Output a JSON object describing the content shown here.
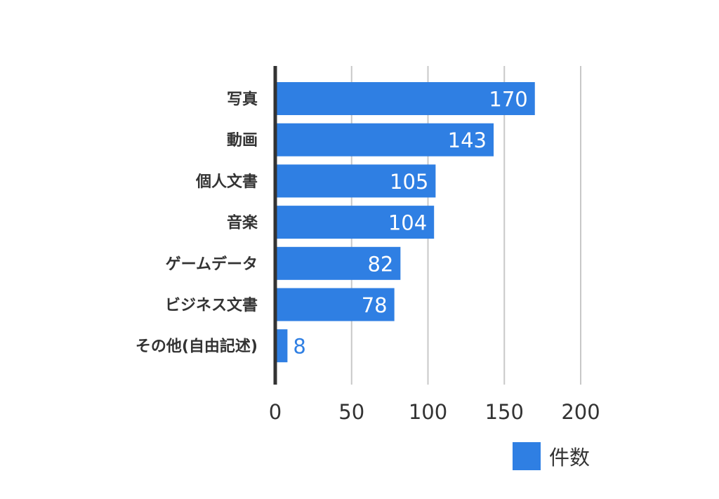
{
  "chart_data": {
    "type": "bar",
    "orientation": "horizontal",
    "categories": [
      "写真",
      "動画",
      "個人文書",
      "音楽",
      "ゲームデータ",
      "ビジネス文書",
      "その他(自由記述)"
    ],
    "series": [
      {
        "name": "件数",
        "values": [
          170,
          143,
          105,
          104,
          82,
          78,
          8
        ]
      }
    ],
    "x_ticks": [
      "0",
      "50",
      "100",
      "150",
      "200"
    ],
    "xlim": [
      0,
      200
    ],
    "grid": "vertical",
    "legend": "bottom-right",
    "colors": {
      "bar": "#2f7fe3",
      "grid": "#c8c8c8",
      "axis": "#333333"
    }
  }
}
